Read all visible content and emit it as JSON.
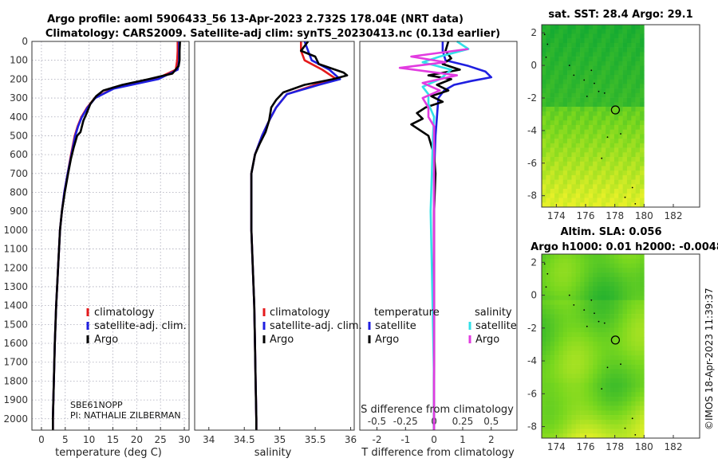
{
  "titles": {
    "main_line1": "Argo profile: aoml 5906433_56 13-Apr-2023 2.732S 178.04E (NRT data)",
    "main_line2": "Climatology: CARS2009. Satellite-adj clim: synTS_20230413.nc (0.13d earlier)",
    "map1": "sat. SST: 28.4 Argo: 29.1",
    "map2_line1": "Altim. SLA: 0.056",
    "map2_line2": "Argo h1000: 0.01 h2000: -0.0048"
  },
  "copyright": "©IMOS 18-Apr-2023 11:39:37",
  "float_info": {
    "line1": "SBE61NOPP",
    "line2": "PI: NATHALIE ZILBERMAN"
  },
  "colors": {
    "climatology": "#e41a1c",
    "satellite": "#1f1fe0",
    "argo": "#000000",
    "sat_diff_s": "#33e0e8",
    "argo_diff_s": "#e23be0"
  },
  "chart_data": [
    {
      "type": "line",
      "name": "temperature",
      "xlabel": "temperature (deg C)",
      "ylabel": "",
      "xlim": [
        -2,
        31
      ],
      "ylim": [
        2060,
        0
      ],
      "xticks": [
        0,
        5,
        10,
        15,
        20,
        25,
        30
      ],
      "yticks": [
        0,
        100,
        200,
        300,
        400,
        500,
        600,
        700,
        800,
        900,
        1000,
        1100,
        1200,
        1300,
        1400,
        1500,
        1600,
        1700,
        1800,
        1900,
        2000
      ],
      "grid": true,
      "legend": [
        "climatology",
        "satellite-adj. clim.",
        "Argo"
      ],
      "legend_position": "lower-right",
      "series": [
        {
          "name": "climatology",
          "color": "#e41a1c",
          "points": [
            [
              28.6,
              0
            ],
            [
              28.6,
              50
            ],
            [
              28.5,
              100
            ],
            [
              28.2,
              150
            ],
            [
              24,
              200
            ],
            [
              15,
              250
            ],
            [
              11.2,
              300
            ],
            [
              9.6,
              350
            ],
            [
              8.4,
              400
            ],
            [
              7.6,
              450
            ],
            [
              7,
              500
            ],
            [
              6.2,
              600
            ],
            [
              5.5,
              700
            ],
            [
              4.8,
              800
            ],
            [
              4.3,
              900
            ],
            [
              3.9,
              1000
            ],
            [
              3.5,
              1200
            ],
            [
              3.1,
              1400
            ],
            [
              2.8,
              1600
            ],
            [
              2.6,
              1800
            ],
            [
              2.4,
              2000
            ],
            [
              2.4,
              2060
            ]
          ]
        },
        {
          "name": "satellite-adj. clim.",
          "color": "#1f1fe0",
          "points": [
            [
              28.9,
              0
            ],
            [
              28.9,
              50
            ],
            [
              28.9,
              100
            ],
            [
              28.6,
              150
            ],
            [
              24.5,
              200
            ],
            [
              15.2,
              250
            ],
            [
              11.3,
              300
            ],
            [
              9.7,
              350
            ],
            [
              8.5,
              400
            ],
            [
              7.7,
              450
            ],
            [
              7.1,
              500
            ],
            [
              6.3,
              600
            ],
            [
              5.5,
              700
            ],
            [
              4.8,
              800
            ],
            [
              4.3,
              900
            ],
            [
              3.9,
              1000
            ],
            [
              3.5,
              1200
            ],
            [
              3.1,
              1400
            ],
            [
              2.8,
              1600
            ],
            [
              2.6,
              1800
            ],
            [
              2.4,
              2000
            ],
            [
              2.4,
              2060
            ]
          ]
        },
        {
          "name": "Argo",
          "color": "#000000",
          "points": [
            [
              29.1,
              0
            ],
            [
              29,
              50
            ],
            [
              29,
              100
            ],
            [
              28.8,
              130
            ],
            [
              27.5,
              170
            ],
            [
              22.5,
              200
            ],
            [
              17,
              230
            ],
            [
              13,
              260
            ],
            [
              11.5,
              290
            ],
            [
              10.3,
              330
            ],
            [
              9.5,
              380
            ],
            [
              8.8,
              420
            ],
            [
              8.2,
              480
            ],
            [
              7.5,
              500
            ],
            [
              6.8,
              560
            ],
            [
              6.2,
              620
            ],
            [
              5.6,
              700
            ],
            [
              4.9,
              800
            ],
            [
              4.3,
              900
            ],
            [
              3.9,
              1000
            ],
            [
              3.5,
              1200
            ],
            [
              3.1,
              1400
            ],
            [
              2.8,
              1600
            ],
            [
              2.6,
              1800
            ],
            [
              2.4,
              2000
            ],
            [
              2.4,
              2060
            ]
          ]
        }
      ]
    },
    {
      "type": "line",
      "name": "salinity",
      "xlabel": "salinity",
      "ylabel": "",
      "xlim": [
        33.8,
        36.05
      ],
      "ylim": [
        2060,
        0
      ],
      "xticks": [
        34,
        34.5,
        35,
        35.5,
        36
      ],
      "grid": false,
      "legend": [
        "climatology",
        "satellite-adj. clim.",
        "Argo"
      ],
      "legend_position": "lower-right",
      "series": [
        {
          "name": "climatology",
          "color": "#e41a1c",
          "points": [
            [
              35.3,
              0
            ],
            [
              35.3,
              50
            ],
            [
              35.35,
              100
            ],
            [
              35.6,
              150
            ],
            [
              35.8,
              200
            ],
            [
              35.5,
              230
            ],
            [
              35.1,
              280
            ],
            [
              34.95,
              350
            ],
            [
              34.85,
              420
            ],
            [
              34.75,
              500
            ],
            [
              34.65,
              600
            ],
            [
              34.6,
              700
            ],
            [
              34.6,
              800
            ],
            [
              34.6,
              1000
            ],
            [
              34.62,
              1200
            ],
            [
              34.64,
              1400
            ],
            [
              34.65,
              1600
            ],
            [
              34.66,
              1800
            ],
            [
              34.67,
              2000
            ],
            [
              34.67,
              2060
            ]
          ]
        },
        {
          "name": "satellite-adj. clim.",
          "color": "#1f1fe0",
          "points": [
            [
              35.35,
              0
            ],
            [
              35.4,
              50
            ],
            [
              35.45,
              100
            ],
            [
              35.7,
              150
            ],
            [
              35.85,
              200
            ],
            [
              35.55,
              230
            ],
            [
              35.1,
              280
            ],
            [
              34.95,
              350
            ],
            [
              34.85,
              420
            ],
            [
              34.75,
              500
            ],
            [
              34.65,
              600
            ],
            [
              34.6,
              700
            ],
            [
              34.6,
              800
            ],
            [
              34.6,
              1000
            ],
            [
              34.62,
              1200
            ],
            [
              34.64,
              1400
            ],
            [
              34.65,
              1600
            ],
            [
              34.66,
              1800
            ],
            [
              34.67,
              2000
            ],
            [
              34.67,
              2060
            ]
          ]
        },
        {
          "name": "Argo",
          "color": "#000000",
          "points": [
            [
              35.4,
              0
            ],
            [
              35.3,
              50
            ],
            [
              35.5,
              80
            ],
            [
              35.55,
              120
            ],
            [
              35.9,
              165
            ],
            [
              35.95,
              180
            ],
            [
              35.75,
              200
            ],
            [
              35.35,
              230
            ],
            [
              35.05,
              270
            ],
            [
              34.95,
              310
            ],
            [
              34.88,
              350
            ],
            [
              34.85,
              420
            ],
            [
              34.8,
              480
            ],
            [
              34.72,
              540
            ],
            [
              34.65,
              600
            ],
            [
              34.6,
              700
            ],
            [
              34.6,
              800
            ],
            [
              34.6,
              1000
            ],
            [
              34.62,
              1200
            ],
            [
              34.64,
              1400
            ],
            [
              34.65,
              1600
            ],
            [
              34.66,
              1800
            ],
            [
              34.67,
              2000
            ],
            [
              34.67,
              2060
            ]
          ]
        }
      ]
    },
    {
      "type": "line",
      "name": "difference",
      "xlabel": "T difference from climatology",
      "xlabel_top": "S difference from climatology",
      "xlim": [
        -2.6,
        2.9
      ],
      "ylim": [
        2060,
        0
      ],
      "xticks": [
        -2,
        -1,
        0,
        1,
        2
      ],
      "xticks_s": [
        -0.5,
        -0.25,
        0,
        0.25,
        0.5
      ],
      "xtick_s_labels": [
        "-0.5",
        "-0.25",
        "0",
        "0.25",
        "0.5"
      ],
      "grid": false,
      "legend_temperature_title": "temperature",
      "legend_salinity_title": "salinity",
      "legend_temperature": [
        "satellite",
        "Argo"
      ],
      "legend_salinity": [
        "satellite",
        "Argo"
      ],
      "series": [
        {
          "name": "T satellite",
          "color": "#1f1fe0",
          "points": [
            [
              0.3,
              0
            ],
            [
              0.3,
              50
            ],
            [
              0.4,
              100
            ],
            [
              1.2,
              130
            ],
            [
              1.8,
              160
            ],
            [
              2.0,
              190
            ],
            [
              1.3,
              210
            ],
            [
              0.7,
              230
            ],
            [
              0.35,
              260
            ],
            [
              0.15,
              300
            ],
            [
              0.1,
              400
            ],
            [
              0.05,
              500
            ],
            [
              0,
              700
            ],
            [
              0,
              1000
            ],
            [
              0,
              1500
            ],
            [
              0,
              2060
            ]
          ]
        },
        {
          "name": "T Argo",
          "color": "#000000",
          "points": [
            [
              0.5,
              0
            ],
            [
              0.4,
              50
            ],
            [
              0.6,
              90
            ],
            [
              0.3,
              120
            ],
            [
              0.9,
              150
            ],
            [
              -0.2,
              180
            ],
            [
              0.6,
              200
            ],
            [
              0.1,
              230
            ],
            [
              0.5,
              260
            ],
            [
              -0.1,
              290
            ],
            [
              0.3,
              320
            ],
            [
              -0.3,
              350
            ],
            [
              -0.6,
              380
            ],
            [
              -0.4,
              410
            ],
            [
              -0.8,
              440
            ],
            [
              -0.5,
              470
            ],
            [
              -0.2,
              500
            ],
            [
              -0.1,
              550
            ],
            [
              0,
              600
            ],
            [
              0.05,
              700
            ],
            [
              0,
              900
            ],
            [
              0,
              1200
            ],
            [
              0,
              1600
            ],
            [
              0,
              2060
            ]
          ]
        },
        {
          "name": "S satellite",
          "color": "#33e0e8",
          "points": [
            [
              0.2,
              0
            ],
            [
              0.3,
              40
            ],
            [
              0.05,
              80
            ],
            [
              -0.1,
              110
            ],
            [
              0.15,
              150
            ],
            [
              0.05,
              200
            ],
            [
              -0.1,
              240
            ],
            [
              -0.05,
              280
            ],
            [
              -0.05,
              330
            ],
            [
              0,
              400
            ],
            [
              -0.01,
              500
            ],
            [
              -0.02,
              700
            ],
            [
              -0.03,
              900
            ],
            [
              -0.02,
              1200
            ],
            [
              -0.01,
              1500
            ],
            [
              0,
              1800
            ],
            [
              0,
              2060
            ]
          ]
        },
        {
          "name": "S Argo",
          "color": "#e23be0",
          "points": [
            [
              0.3,
              40
            ],
            [
              -0.2,
              80
            ],
            [
              0.1,
              110
            ],
            [
              -0.3,
              140
            ],
            [
              0.2,
              180
            ],
            [
              -0.1,
              220
            ],
            [
              0.05,
              260
            ],
            [
              -0.1,
              300
            ],
            [
              -0.05,
              350
            ],
            [
              -0.05,
              400
            ],
            [
              0,
              450
            ],
            [
              0,
              500
            ],
            [
              0,
              800
            ],
            [
              0,
              1200
            ],
            [
              0,
              1600
            ],
            [
              0,
              2060
            ]
          ]
        }
      ]
    },
    {
      "type": "heatmap",
      "name": "sst_map",
      "title": "sat. SST: 28.4 Argo: 29.1",
      "xlim": [
        173,
        183.8
      ],
      "ylim": [
        -8.7,
        2.5
      ],
      "xticks": [
        174,
        176,
        178,
        180,
        182
      ],
      "yticks": [
        2,
        0,
        -2,
        -4,
        -6,
        -8
      ],
      "data_extent_lon": [
        173,
        180
      ],
      "argo_position": {
        "lon": 178.04,
        "lat": -2.732
      }
    },
    {
      "type": "heatmap",
      "name": "sla_map",
      "title": "Altim. SLA: 0.056",
      "subtitle": "Argo h1000: 0.01 h2000: -0.0048",
      "xlim": [
        173,
        183.8
      ],
      "ylim": [
        -8.7,
        2.5
      ],
      "xticks": [
        174,
        176,
        178,
        180,
        182
      ],
      "yticks": [
        2,
        0,
        -2,
        -4,
        -6,
        -8
      ],
      "data_extent_lon": [
        173,
        180
      ],
      "argo_position": {
        "lon": 178.04,
        "lat": -2.732
      }
    }
  ]
}
